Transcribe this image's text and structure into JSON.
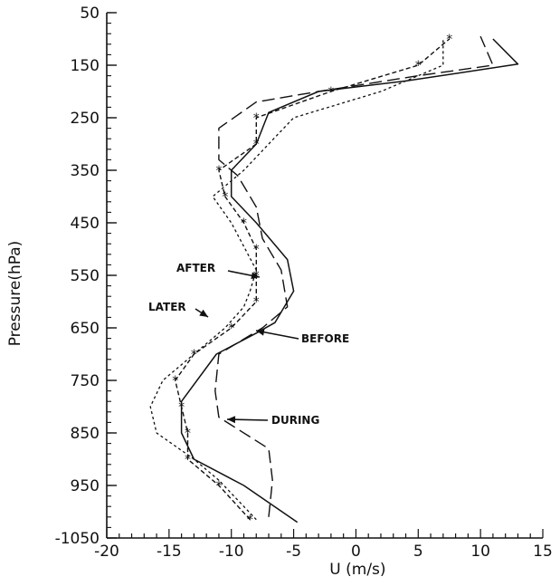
{
  "chart_data": {
    "type": "line",
    "title": "",
    "xlabel": "U (m/s)",
    "ylabel": "Pressure(hPa)",
    "xlim": [
      -20,
      15
    ],
    "ylim": [
      1050,
      50
    ],
    "y_inverted": true,
    "x_ticks": [
      "-20",
      "-15",
      "-10",
      "-5",
      "0",
      "5",
      "10",
      "15"
    ],
    "y_ticks": [
      "50",
      "150",
      "250",
      "350",
      "450",
      "550",
      "650",
      "750",
      "850",
      "950",
      "-1050"
    ],
    "grid": false,
    "legend": "none",
    "series": [
      {
        "name": "BEFORE",
        "style": "solid",
        "points": [
          [
            -4.7,
            1020
          ],
          [
            -9,
            950
          ],
          [
            -13,
            900
          ],
          [
            -14,
            850
          ],
          [
            -14,
            790
          ],
          [
            -11.2,
            700
          ],
          [
            -8,
            660
          ],
          [
            -6.5,
            640
          ],
          [
            -5,
            580
          ],
          [
            -5.5,
            520
          ],
          [
            -8,
            450
          ],
          [
            -10,
            400
          ],
          [
            -10,
            350
          ],
          [
            -8,
            300
          ],
          [
            -7,
            240
          ],
          [
            -3,
            200
          ],
          [
            4,
            180
          ],
          [
            13,
            148
          ],
          [
            11,
            100
          ]
        ]
      },
      {
        "name": "AFTER",
        "style": "dash-star",
        "points": [
          [
            -8.5,
            1015
          ],
          [
            -11,
            950
          ],
          [
            -13.5,
            900
          ],
          [
            -13.5,
            850
          ],
          [
            -14,
            800
          ],
          [
            -14.5,
            750
          ],
          [
            -13,
            700
          ],
          [
            -10,
            650
          ],
          [
            -8,
            600
          ],
          [
            -8,
            550
          ],
          [
            -8,
            500
          ],
          [
            -9,
            450
          ],
          [
            -10.5,
            400
          ],
          [
            -11,
            350
          ],
          [
            -8,
            300
          ],
          [
            -8,
            250
          ],
          [
            -2,
            200
          ],
          [
            5,
            150
          ],
          [
            7.5,
            100
          ]
        ]
      },
      {
        "name": "LATER",
        "style": "short-dash",
        "points": [
          [
            -8,
            1015
          ],
          [
            -11,
            940
          ],
          [
            -13,
            900
          ],
          [
            -16,
            850
          ],
          [
            -16.5,
            800
          ],
          [
            -15.5,
            750
          ],
          [
            -13,
            700
          ],
          [
            -10.5,
            650
          ],
          [
            -9,
            610
          ],
          [
            -8.5,
            580
          ],
          [
            -8,
            540
          ],
          [
            -10,
            450
          ],
          [
            -11.5,
            400
          ],
          [
            -9,
            350
          ],
          [
            -7,
            300
          ],
          [
            -5,
            250
          ],
          [
            2,
            200
          ],
          [
            7,
            150
          ],
          [
            7,
            100
          ]
        ]
      },
      {
        "name": "DURING",
        "style": "long-dash",
        "points": [
          [
            -7,
            1010
          ],
          [
            -6.7,
            940
          ],
          [
            -7,
            880
          ],
          [
            -11,
            820
          ],
          [
            -11.3,
            770
          ],
          [
            -11,
            700
          ],
          [
            -7.5,
            650
          ],
          [
            -5.5,
            610
          ],
          [
            -6,
            540
          ],
          [
            -7.5,
            480
          ],
          [
            -8,
            420
          ],
          [
            -9.5,
            360
          ],
          [
            -11,
            330
          ],
          [
            -11,
            270
          ],
          [
            -8,
            220
          ],
          [
            -3,
            200
          ],
          [
            5,
            170
          ],
          [
            11,
            150
          ],
          [
            10,
            95
          ]
        ]
      }
    ],
    "annotations": [
      {
        "text": "AFTER",
        "series": "AFTER"
      },
      {
        "text": "LATER",
        "series": "LATER"
      },
      {
        "text": "BEFORE",
        "series": "BEFORE"
      },
      {
        "text": "DURING",
        "series": "DURING"
      }
    ]
  }
}
